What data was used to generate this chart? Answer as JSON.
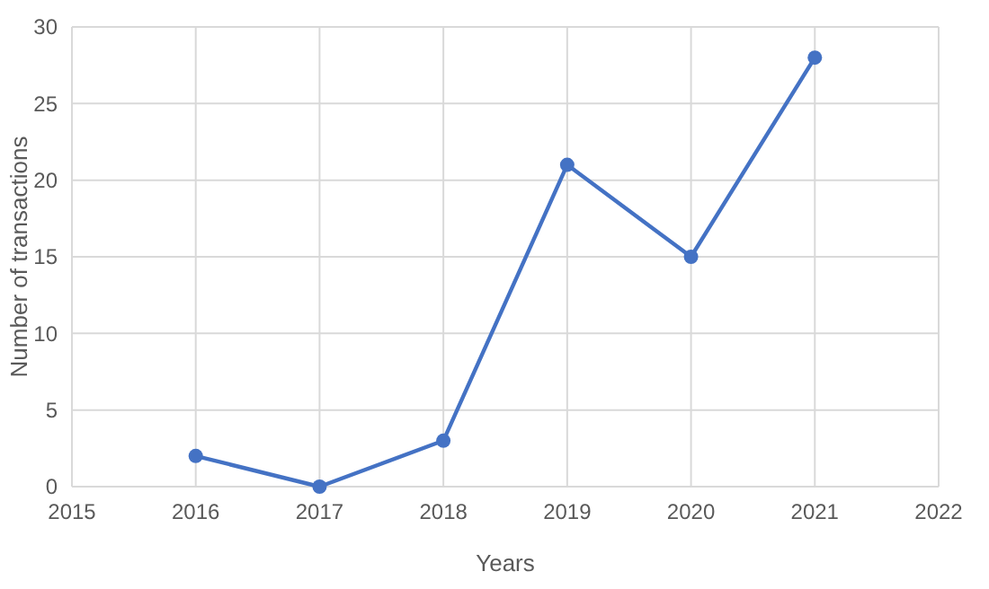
{
  "chart_data": {
    "type": "line",
    "xlabel": "Years",
    "ylabel": "Number of transactions",
    "x": [
      2016,
      2017,
      2018,
      2019,
      2020,
      2021
    ],
    "series": [
      {
        "color": "#4472c4",
        "values": [
          2,
          0,
          3,
          21,
          15,
          28
        ]
      }
    ],
    "xlim": [
      2015,
      2022
    ],
    "xticks": [
      2015,
      2016,
      2017,
      2018,
      2019,
      2020,
      2021,
      2022
    ],
    "ylim": [
      0,
      30
    ],
    "yticks": [
      0,
      5,
      10,
      15,
      20,
      25,
      30
    ],
    "grid": true,
    "marker": "circle",
    "line_style": "solid"
  }
}
